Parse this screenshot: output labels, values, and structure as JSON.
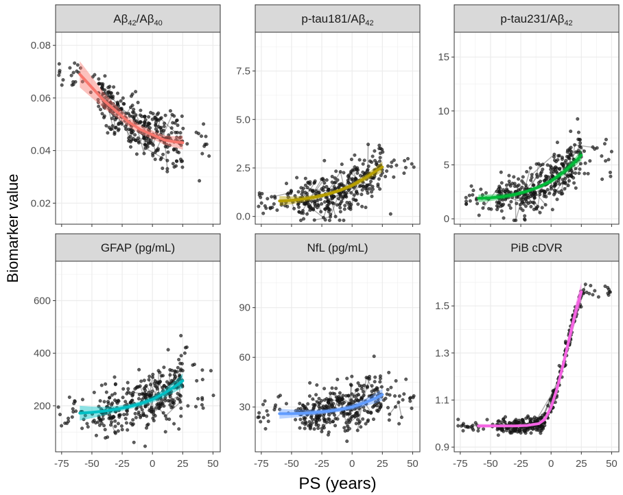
{
  "figure": {
    "ylabel": "Biomarker value",
    "xlabel": "PS (years)"
  },
  "chart_data": [
    {
      "type": "scatter",
      "title": "Aβ42/Aβ40",
      "title_main": "Aβ",
      "title_sub1": "42",
      "title_mid": "/Aβ",
      "title_sub2": "40",
      "xlabel": "PS (years)",
      "ylabel": "Biomarker value",
      "xlim": [
        -80,
        56
      ],
      "ylim": [
        0.012,
        0.085
      ],
      "xticks": [
        -75,
        -50,
        -25,
        0,
        25,
        50
      ],
      "yticks": [
        0.02,
        0.04,
        0.06,
        0.08
      ],
      "ytick_labels": [
        "0.02",
        "0.04",
        "0.06",
        "0.08"
      ],
      "fit_color": "#F8766D",
      "fit": {
        "x": [
          -60,
          -50,
          -40,
          -30,
          -20,
          -10,
          0,
          10,
          20,
          25
        ],
        "y": [
          0.069,
          0.064,
          0.059,
          0.055,
          0.051,
          0.048,
          0.046,
          0.044,
          0.0432,
          0.043
        ]
      },
      "ci_width": [
        0.005,
        0.004,
        0.003,
        0.0022,
        0.0018,
        0.0016,
        0.0016,
        0.0018,
        0.0022,
        0.0026
      ],
      "scatter": {
        "x_range": [
          -78,
          52
        ],
        "y_center": [
          0.07,
          0.046
        ],
        "y_spread": 0.008,
        "n": 360
      }
    },
    {
      "type": "scatter",
      "title": "p-tau181/Aβ42",
      "title_main": "p-tau181/Aβ",
      "title_sub1": "42",
      "xlabel": "PS (years)",
      "ylabel": "Biomarker value",
      "xlim": [
        -80,
        56
      ],
      "ylim": [
        -0.4,
        9.5
      ],
      "xticks": [
        -75,
        -50,
        -25,
        0,
        25,
        50
      ],
      "yticks": [
        0.0,
        2.5,
        5.0,
        7.5
      ],
      "ytick_labels": [
        "0.0",
        "2.5",
        "5.0",
        "7.5"
      ],
      "fit_color": "#B79F00",
      "fit": {
        "x": [
          -60,
          -50,
          -40,
          -30,
          -20,
          -10,
          0,
          10,
          20,
          25
        ],
        "y": [
          0.8,
          0.83,
          0.9,
          1.0,
          1.15,
          1.35,
          1.6,
          1.95,
          2.35,
          2.55
        ]
      },
      "ci_width": [
        0.25,
        0.2,
        0.15,
        0.12,
        0.1,
        0.1,
        0.12,
        0.16,
        0.22,
        0.28
      ],
      "scatter": {
        "x_range": [
          -78,
          52
        ],
        "y_center": [
          0.8,
          2.6
        ],
        "y_spread": 1.0,
        "n": 360
      }
    },
    {
      "type": "scatter",
      "title": "p-tau231/Aβ42",
      "title_main": "p-tau231/Aβ",
      "title_sub1": "42",
      "xlabel": "PS (years)",
      "ylabel": "Biomarker value",
      "xlim": [
        -80,
        56
      ],
      "ylim": [
        -0.5,
        17.3
      ],
      "xticks": [
        -75,
        -50,
        -25,
        0,
        25,
        50
      ],
      "yticks": [
        0,
        5,
        10,
        15
      ],
      "ytick_labels": [
        "0",
        "5",
        "10",
        "15"
      ],
      "fit_color": "#00BA38",
      "fit": {
        "x": [
          -60,
          -50,
          -40,
          -30,
          -20,
          -10,
          0,
          10,
          20,
          25
        ],
        "y": [
          1.9,
          1.95,
          2.05,
          2.25,
          2.55,
          2.95,
          3.5,
          4.3,
          5.3,
          5.9
        ]
      },
      "ci_width": [
        0.35,
        0.3,
        0.25,
        0.2,
        0.18,
        0.18,
        0.22,
        0.3,
        0.4,
        0.5
      ],
      "scatter": {
        "x_range": [
          -78,
          52
        ],
        "y_center": [
          1.9,
          5.8
        ],
        "y_spread": 1.8,
        "n": 360
      }
    },
    {
      "type": "scatter",
      "title": "GFAP (pg/mL)",
      "xlabel": "PS (years)",
      "ylabel": "Biomarker value",
      "xlim": [
        -80,
        56
      ],
      "ylim": [
        25,
        750
      ],
      "xticks": [
        -75,
        -50,
        -25,
        0,
        25,
        50
      ],
      "yticks": [
        200,
        400,
        600
      ],
      "ytick_labels": [
        "200",
        "400",
        "600"
      ],
      "fit_color": "#00BFC4",
      "fit": {
        "x": [
          -60,
          -50,
          -40,
          -30,
          -20,
          -10,
          0,
          10,
          20,
          25
        ],
        "y": [
          172,
          175,
          180,
          187,
          196,
          208,
          224,
          248,
          278,
          295
        ]
      },
      "ci_width": [
        28,
        22,
        16,
        12,
        10,
        10,
        12,
        16,
        22,
        28
      ],
      "scatter": {
        "x_range": [
          -78,
          52
        ],
        "y_center": [
          180,
          300
        ],
        "y_spread": 90,
        "n": 360
      }
    },
    {
      "type": "scatter",
      "title": "NfL (pg/mL)",
      "xlabel": "PS (years)",
      "ylabel": "Biomarker value",
      "xlim": [
        -80,
        56
      ],
      "ylim": [
        3,
        118
      ],
      "xticks": [
        -75,
        -50,
        -25,
        0,
        25,
        50
      ],
      "yticks": [
        30,
        60,
        90
      ],
      "ytick_labels": [
        "30",
        "60",
        "90"
      ],
      "fit_color": "#619CFF",
      "fit": {
        "x": [
          -60,
          -50,
          -40,
          -30,
          -20,
          -10,
          0,
          10,
          20,
          25
        ],
        "y": [
          26,
          26,
          26.3,
          26.8,
          27.5,
          28.5,
          30,
          32.5,
          35.5,
          37.5
        ]
      },
      "ci_width": [
        3,
        2.5,
        2,
        1.6,
        1.4,
        1.4,
        1.6,
        2.2,
        3,
        3.6
      ],
      "scatter": {
        "x_range": [
          -78,
          52
        ],
        "y_center": [
          26,
          36
        ],
        "y_spread": 11,
        "n": 360
      }
    },
    {
      "type": "scatter",
      "title": "PiB cDVR",
      "xlabel": "PS (years)",
      "ylabel": "Biomarker value",
      "xlim": [
        -80,
        56
      ],
      "ylim": [
        0.88,
        1.69
      ],
      "xticks": [
        -75,
        -50,
        -25,
        0,
        25,
        50
      ],
      "yticks": [
        0.9,
        1.1,
        1.3,
        1.5
      ],
      "ytick_labels": [
        "0.9",
        "1.1",
        "1.3",
        "1.5"
      ],
      "fit_color": "#F564E3",
      "fit": {
        "x": [
          -60,
          -50,
          -40,
          -30,
          -20,
          -10,
          -5,
          0,
          5,
          10,
          15,
          20,
          25
        ],
        "y": [
          0.99,
          0.99,
          0.99,
          0.99,
          0.992,
          1.0,
          1.02,
          1.07,
          1.15,
          1.25,
          1.36,
          1.47,
          1.56
        ]
      },
      "ci_width": [
        0.008,
        0.006,
        0.005,
        0.004,
        0.004,
        0.006,
        0.01,
        0.015,
        0.02,
        0.025,
        0.03,
        0.035,
        0.04
      ],
      "scatter": {
        "x_range": [
          -78,
          52
        ],
        "y_center": [
          1.0,
          1.56
        ],
        "y_spread": 0.03,
        "n": 360
      }
    }
  ]
}
